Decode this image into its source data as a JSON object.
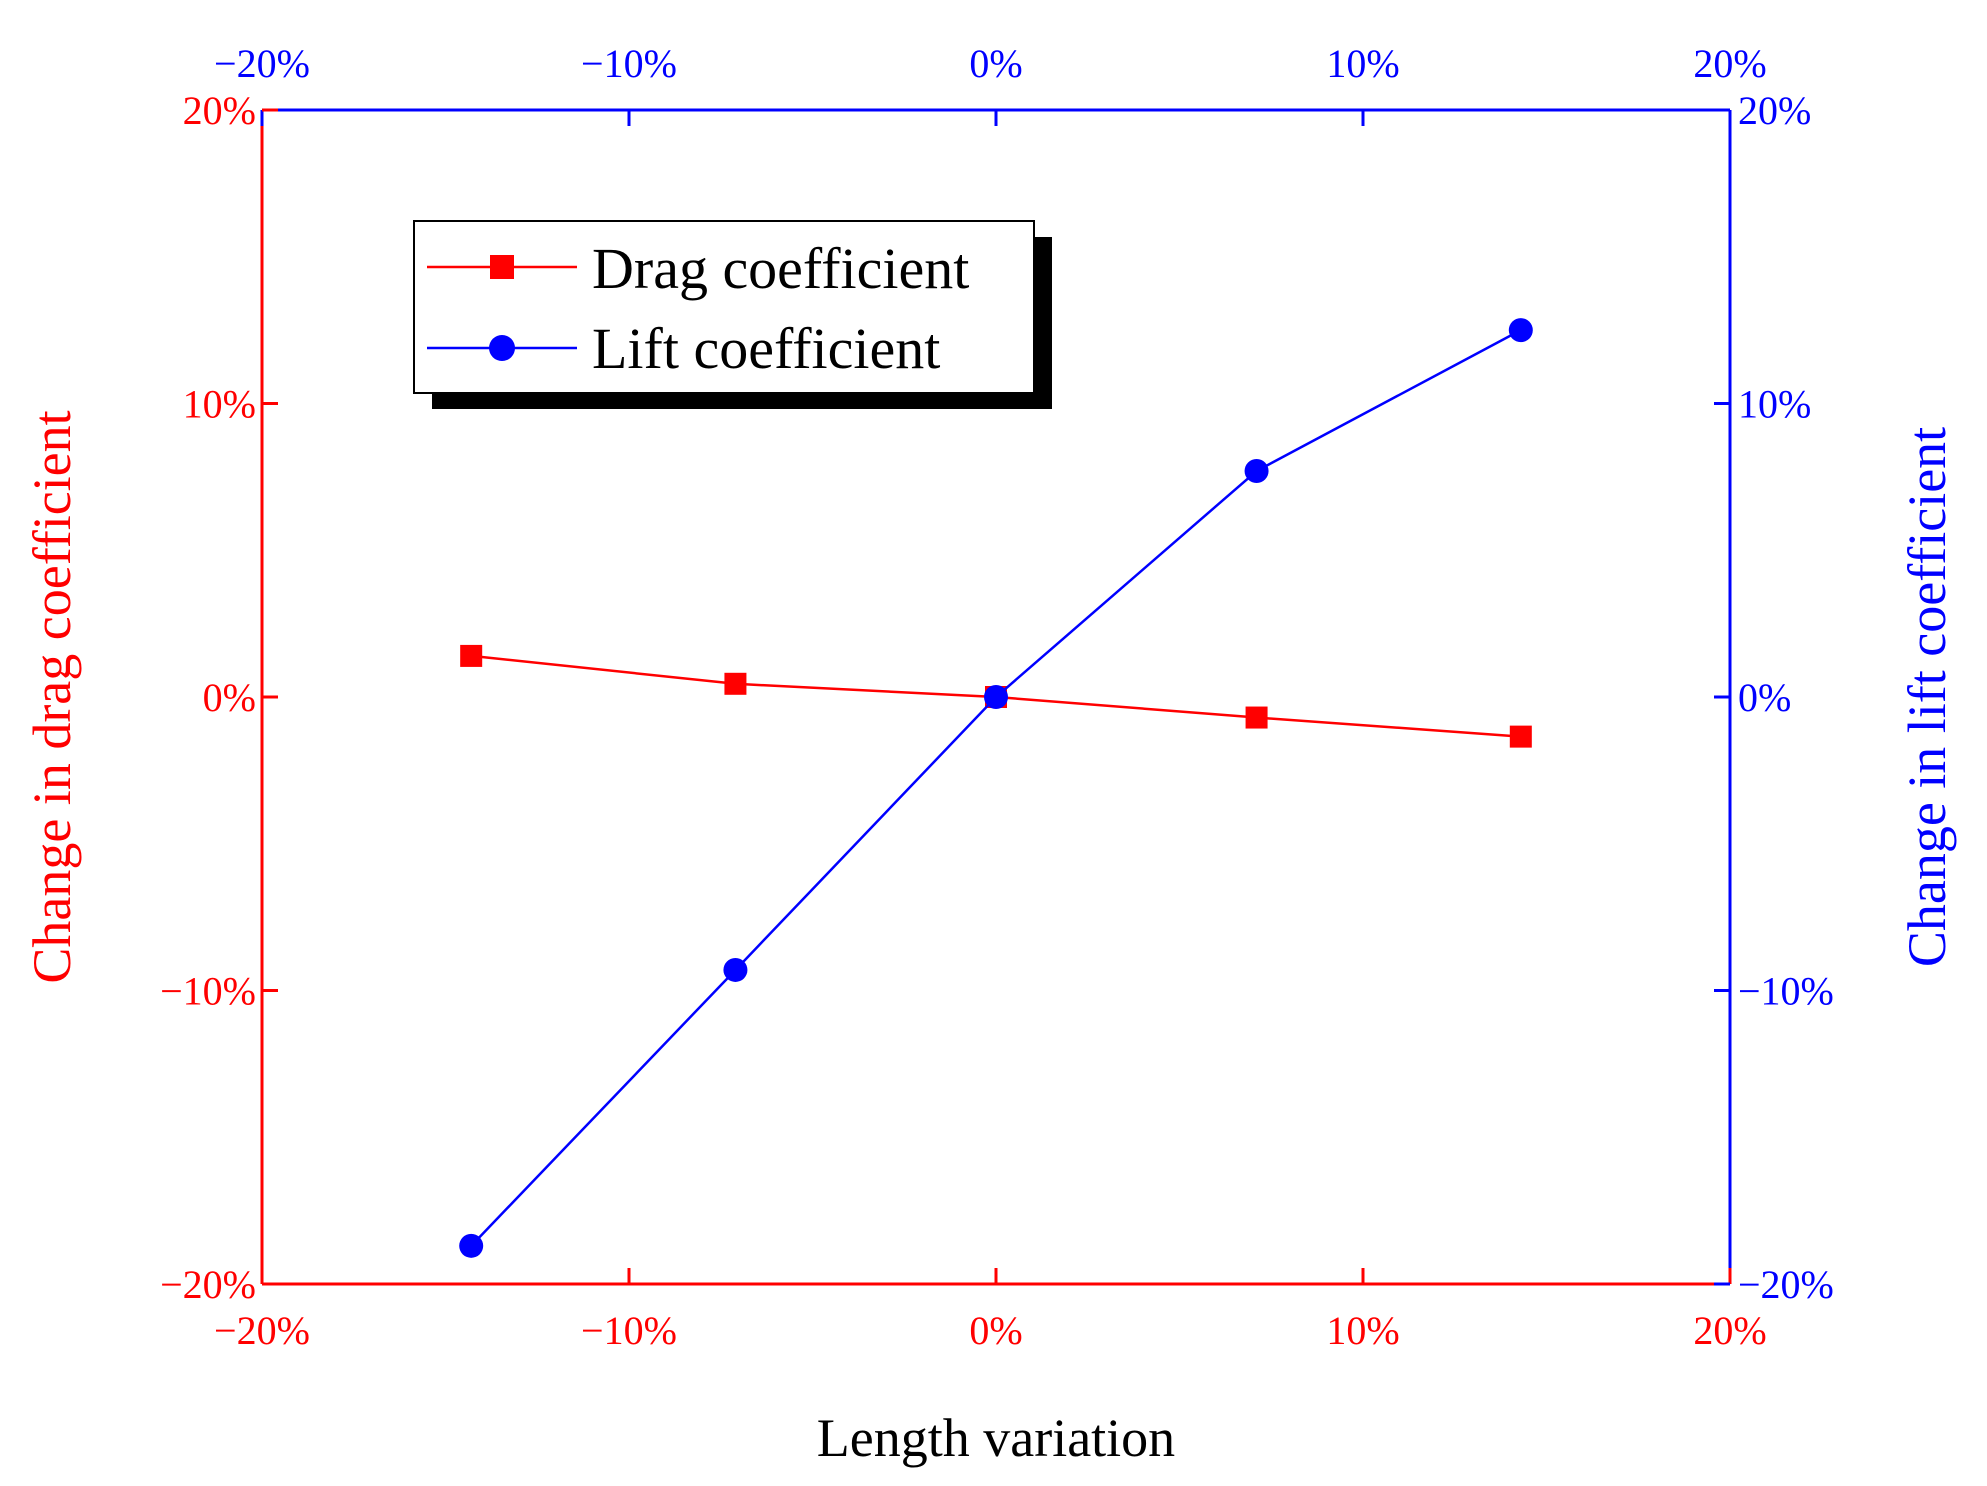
{
  "chart_data": {
    "type": "line",
    "xlabel": "Length variation",
    "ylabel_left": "Change in drag coefficient",
    "ylabel_right": "Change in lift coefficient",
    "x_ticks": [
      "−20%",
      "−10%",
      "0%",
      "10%",
      "20%"
    ],
    "x_top_ticks": [
      "−20%",
      "−10%",
      "0%",
      "10%",
      "20%"
    ],
    "y_left_ticks": [
      "−20%",
      "−10%",
      "0%",
      "10%",
      "20%"
    ],
    "y_right_ticks": [
      "−20%",
      "−10%",
      "0%",
      "10%",
      "20%"
    ],
    "xlim": [
      -20,
      20
    ],
    "ylim_left": [
      -20,
      20
    ],
    "ylim_right": [
      -20,
      20
    ],
    "x_tick_values": [
      -20,
      -10,
      0,
      10,
      20
    ],
    "y_tick_values": [
      -20,
      -10,
      0,
      10,
      20
    ],
    "grid": false,
    "legend_position": "top-left",
    "series": [
      {
        "name": "Drag coefficient",
        "axis": "left",
        "color": "#ff0000",
        "marker": "square",
        "x": [
          -14.3,
          -7.1,
          0,
          7.1,
          14.3
        ],
        "y": [
          1.4,
          0.45,
          0,
          -0.7,
          -1.35
        ]
      },
      {
        "name": "Lift coefficient",
        "axis": "right",
        "color": "#0000ff",
        "marker": "circle",
        "x": [
          -14.3,
          -7.1,
          0,
          7.1,
          14.3
        ],
        "y": [
          -18.7,
          -9.3,
          0,
          7.7,
          12.5
        ]
      }
    ]
  }
}
